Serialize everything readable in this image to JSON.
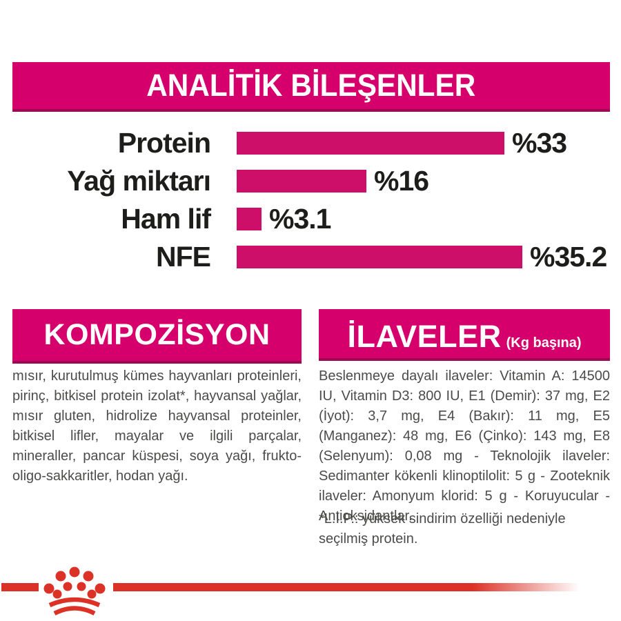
{
  "colors": {
    "magenta": "#D5006C",
    "magenta_dark": "#9E0A52",
    "bar": "#CD0F69",
    "red": "#DC3126",
    "text_dark": "#1D1D1B",
    "text_gray": "#4B4B4A"
  },
  "header": {
    "title": "ANALİTİK BİLEŞENLER"
  },
  "chart_data": {
    "type": "bar",
    "orientation": "horizontal",
    "title": "ANALİTİK BİLEŞENLER",
    "categories": [
      "Protein",
      "Yağ miktarı",
      "Ham lif",
      "NFE"
    ],
    "values": [
      33,
      16,
      3.1,
      35.2
    ],
    "value_labels": [
      "%33",
      "%16",
      "%3.1",
      "%35.2"
    ],
    "unit": "percent",
    "bar_color": "#CD0F69",
    "xlim": [
      0,
      36
    ],
    "grid": false,
    "legend": false
  },
  "sections": {
    "composition": {
      "title": "KOMPOZİSYON",
      "body": "mısır, kurutulmuş kümes hayvanları proteinleri, pirinç, bitkisel protein izolat*, hayvansal yağlar, mısır gluten, hidrolize hayvansal proteinler, bitkisel lifler, mayalar ve ilgili parçalar, mineraller, pancar küspesi, soya yağı, frukto- oligo-sakkaritler, hodan yağı."
    },
    "additives": {
      "title": "İLAVELER",
      "subtitle": "(Kg başına)",
      "body": "Beslenmeye dayalı ilaveler: Vitamin A: 14500 IU, Vitamin D3: 800 IU, E1 (Demir): 37 mg, E2 (İyot): 3,7 mg, E4 (Bakır): 11 mg, E5 (Manganez): 48 mg, E6 (Çinko): 143 mg, E8 (Selenyum): 0,08 mg - Teknolojik ilaveler: Sedimanter kökenli klinoptilolit: 5 g - Zooteknik ilaveler: Amonyum klorid: 5 g - Koruyucular - Antioksidantlar.",
      "footnote": "*L.I.P.: yüksek sindirim özelliği nedeniyle seçilmiş protein."
    }
  },
  "footer": {
    "logo": "royal-canin-crown-icon"
  }
}
